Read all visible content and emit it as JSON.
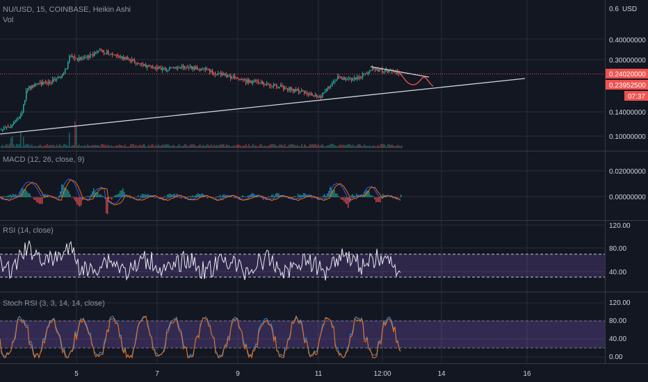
{
  "header": {
    "symbol_line": "NU/USD, 15, COINBASE, Heikin Ashi",
    "volume_label": "Vol",
    "currency": "USD"
  },
  "price_axis": {
    "ticks": [
      "0.6",
      "0.40000000",
      "0.30000000",
      "0.14000000",
      "0.10000000"
    ]
  },
  "price_badges": {
    "last_price": "0.24020000",
    "bar_price": "0.23952500",
    "countdown": "07:37"
  },
  "macd": {
    "title": "MACD (12, 26, close, 9)",
    "ticks": [
      "0.02000000",
      "0.00000000"
    ]
  },
  "rsi": {
    "title": "RSI (14, close)",
    "ticks": [
      "120.00",
      "80.00",
      "40.00"
    ]
  },
  "stoch_rsi": {
    "title": "Stoch RSI (3, 3, 14, 14, close)",
    "ticks": [
      "120.00",
      "80.00",
      "40.00",
      "0.00"
    ]
  },
  "time_axis": {
    "ticks": [
      "5",
      "7",
      "9",
      "11",
      "12:00",
      "14",
      "16"
    ]
  },
  "colors": {
    "background": "#131722",
    "up": "#26a69a",
    "down": "#ef5350",
    "grid": "#2a2e39",
    "trendline": "#d1d4dc",
    "macd_line": "#2962ff",
    "signal_line": "#ff6d00",
    "rsi_band": "#7e57c2",
    "stoch_k": "#2196f3",
    "stoch_d": "#ff6d00",
    "projection": "#ef5350"
  }
}
